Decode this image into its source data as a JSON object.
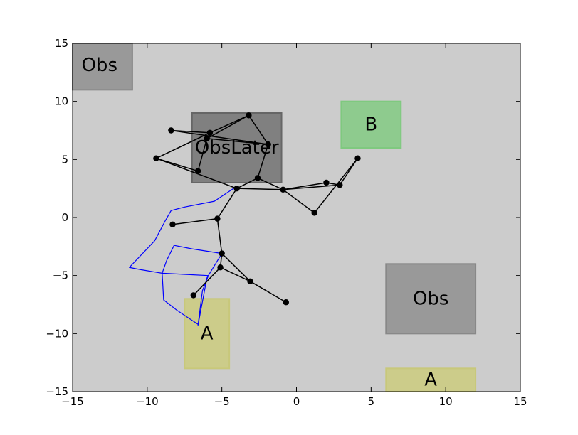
{
  "chart_data": {
    "type": "scatter",
    "title": "",
    "xlabel": "",
    "ylabel": "",
    "xlim": [
      -15,
      15
    ],
    "ylim": [
      -15,
      15
    ],
    "xticks": [
      -15,
      -10,
      -5,
      0,
      5,
      10,
      15
    ],
    "yticks": [
      -15,
      -10,
      -5,
      0,
      5,
      10,
      15
    ],
    "tick_labels_x": [
      "−15",
      "−10",
      "−5",
      "0",
      "5",
      "10",
      "15"
    ],
    "tick_labels_y": [
      "−15",
      "−10",
      "−5",
      "0",
      "5",
      "10",
      "15"
    ],
    "grid": false,
    "background_color": "#cccccc",
    "regions": [
      {
        "label": "Obs",
        "x0": -15,
        "x1": -11,
        "y0": 11,
        "y1": 15,
        "fill": "#999999",
        "stroke": "#888888",
        "label_at": [
          -13.2,
          13.1
        ]
      },
      {
        "label": "ObsLater",
        "x0": -7,
        "x1": -1,
        "y0": 3,
        "y1": 9,
        "fill": "#808080",
        "stroke": "#666666",
        "label_at": [
          -4.0,
          6.0
        ]
      },
      {
        "label": "B",
        "x0": 3,
        "x1": 7,
        "y0": 6,
        "y1": 10,
        "fill": "#8ecb8e",
        "stroke": "#7fc97f",
        "label_at": [
          5.0,
          8.0
        ]
      },
      {
        "label": "Obs",
        "x0": 6,
        "x1": 12,
        "y0": -10,
        "y1": -4,
        "fill": "#999999",
        "stroke": "#888888",
        "label_at": [
          9.0,
          -7.0
        ]
      },
      {
        "label": "A",
        "x0": -7.5,
        "x1": -4.5,
        "y0": -13,
        "y1": -7,
        "fill": "#cccc8a",
        "stroke": "#c8c87a",
        "label_at": [
          -6.0,
          -10.0
        ]
      },
      {
        "label": "A",
        "x0": 6,
        "x1": 12,
        "y0": -15,
        "y1": -13,
        "fill": "#cccc8a",
        "stroke": "#c8c87a",
        "label_at": [
          9.0,
          -14.0
        ]
      }
    ],
    "nodes": [
      [
        -3.2,
        8.8
      ],
      [
        -8.4,
        7.5
      ],
      [
        -5.8,
        7.3
      ],
      [
        -6.0,
        6.8
      ],
      [
        -1.9,
        6.3
      ],
      [
        -9.4,
        5.1
      ],
      [
        -6.6,
        4.0
      ],
      [
        -2.6,
        3.4
      ],
      [
        -4.0,
        2.5
      ],
      [
        -0.9,
        2.4
      ],
      [
        1.2,
        0.4
      ],
      [
        2.0,
        3.0
      ],
      [
        2.9,
        2.8
      ],
      [
        4.1,
        5.1
      ],
      [
        -5.3,
        -0.1
      ],
      [
        -8.3,
        -0.6
      ],
      [
        -5.0,
        -3.1
      ],
      [
        -5.1,
        -4.3
      ],
      [
        -3.1,
        -5.5
      ],
      [
        -6.9,
        -6.7
      ],
      [
        -0.7,
        -7.3
      ]
    ],
    "edges": [
      [
        0,
        2
      ],
      [
        0,
        3
      ],
      [
        0,
        4
      ],
      [
        1,
        2
      ],
      [
        1,
        4
      ],
      [
        2,
        5
      ],
      [
        3,
        4
      ],
      [
        3,
        6
      ],
      [
        4,
        7
      ],
      [
        5,
        6
      ],
      [
        5,
        8
      ],
      [
        7,
        8
      ],
      [
        7,
        9
      ],
      [
        8,
        9
      ],
      [
        9,
        10
      ],
      [
        9,
        11
      ],
      [
        9,
        12
      ],
      [
        11,
        12
      ],
      [
        10,
        13
      ],
      [
        12,
        13
      ],
      [
        8,
        14
      ],
      [
        14,
        15
      ],
      [
        14,
        16
      ],
      [
        16,
        17
      ],
      [
        16,
        18
      ],
      [
        17,
        18
      ],
      [
        17,
        19
      ],
      [
        18,
        20
      ]
    ],
    "path": [
      [
        -4.1,
        2.6
      ],
      [
        -5.5,
        1.4
      ],
      [
        -7.5,
        0.9
      ],
      [
        -8.4,
        0.6
      ],
      [
        -8.8,
        -0.3
      ],
      [
        -9.5,
        -2.0
      ],
      [
        -11.2,
        -4.3
      ],
      [
        -10.4,
        -4.5
      ],
      [
        -9.0,
        -4.8
      ],
      [
        -8.7,
        -3.7
      ],
      [
        -8.2,
        -2.4
      ],
      [
        -7.0,
        -2.7
      ],
      [
        -5.0,
        -3.1
      ],
      [
        -6.0,
        -5.2
      ],
      [
        -6.6,
        -9.3
      ],
      [
        -6.3,
        -6.3
      ],
      [
        -5.9,
        -5.0
      ],
      [
        -9.0,
        -4.8
      ],
      [
        -8.9,
        -7.1
      ],
      [
        -8.0,
        -8.0
      ],
      [
        -6.6,
        -9.2
      ]
    ],
    "colors": {
      "edge": "#000000",
      "node": "#000000",
      "path": "#0000ff"
    }
  }
}
